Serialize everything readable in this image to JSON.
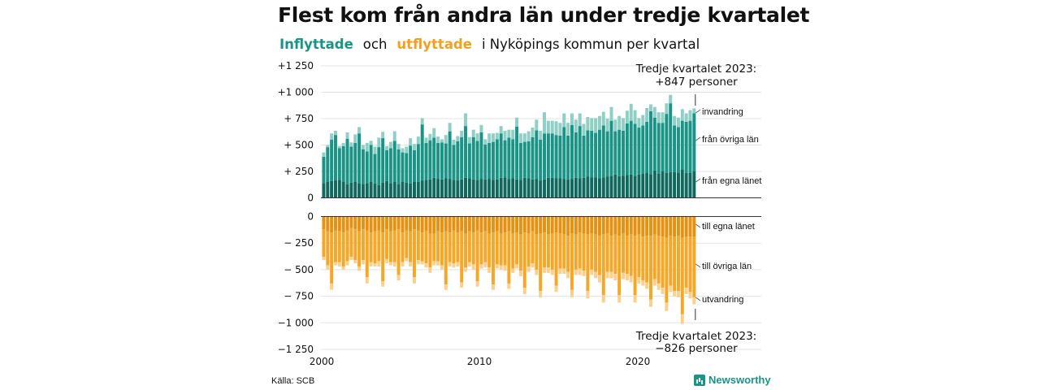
{
  "title": "Flest kom från andra län under tredje kvartalet",
  "subtitle": {
    "inflow": "Inflyttade",
    "and": "och",
    "outflow": "utflyttade",
    "rest": "i Nyköpings kommun per kvartal"
  },
  "source": "Källa: SCB",
  "brand": "Newsworthy",
  "colors": {
    "in_local": "#10695e",
    "in_other": "#1a9486",
    "in_abroad": "#8fd0c6",
    "out_local": "#e8900f",
    "out_other": "#f6a728",
    "out_abroad": "#fbd08c"
  },
  "chart_data": {
    "type": "bar",
    "stacked": true,
    "x_start": "2000 Q1",
    "x_end": "2023 Q3",
    "x_ticks": [
      "2000",
      "2010",
      "2020"
    ],
    "top_panel": {
      "y_ticks": [
        {
          "value": 1250,
          "label": "+1 250"
        },
        {
          "value": 1000,
          "label": "+1 000"
        },
        {
          "value": 750,
          "label": "+  750"
        },
        {
          "value": 500,
          "label": "+  500"
        },
        {
          "value": 250,
          "label": "+  250"
        },
        {
          "value": 0,
          "label": "0"
        }
      ],
      "series_labels": [
        "invandring",
        "från övriga län",
        "från egna länet"
      ],
      "callout": [
        "Tredje kvartalet 2023:",
        "+847 personer"
      ],
      "from_own_county": [
        140,
        150,
        160,
        165,
        170,
        150,
        130,
        145,
        150,
        140,
        130,
        140,
        150,
        135,
        120,
        145,
        160,
        140,
        150,
        130,
        150,
        145,
        135,
        150,
        150,
        165,
        170,
        175,
        190,
        180,
        175,
        185,
        180,
        170,
        165,
        175,
        190,
        185,
        175,
        170,
        180,
        175,
        180,
        170,
        175,
        190,
        195,
        180,
        185,
        175,
        170,
        190,
        185,
        175,
        180,
        165,
        175,
        190,
        190,
        185,
        185,
        180,
        175,
        180,
        190,
        185,
        190,
        200,
        195,
        195,
        185,
        195,
        200,
        210,
        220,
        205,
        210,
        215,
        220,
        210,
        220,
        230,
        240,
        225,
        260,
        230,
        250,
        235,
        245,
        245,
        240,
        270,
        235,
        240,
        250
      ],
      "from_other_counties": [
        250,
        330,
        390,
        430,
        300,
        340,
        430,
        340,
        370,
        470,
        330,
        300,
        350,
        280,
        360,
        420,
        290,
        330,
        390,
        330,
        280,
        280,
        360,
        300,
        360,
        530,
        350,
        370,
        380,
        340,
        350,
        330,
        450,
        330,
        370,
        400,
        490,
        330,
        400,
        370,
        440,
        330,
        340,
        360,
        380,
        420,
        350,
        390,
        370,
        500,
        350,
        340,
        350,
        400,
        460,
        385,
        435,
        420,
        420,
        410,
        405,
        490,
        415,
        510,
        430,
        495,
        400,
        440,
        440,
        420,
        460,
        490,
        430,
        520,
        410,
        440,
        425,
        490,
        510,
        490,
        445,
        455,
        480,
        595,
        500,
        480,
        460,
        560,
        650,
        440,
        430,
        460,
        485,
        490,
        550
      ],
      "immigration": [
        40,
        20,
        60,
        40,
        20,
        30,
        60,
        40,
        80,
        60,
        40,
        80,
        40,
        70,
        90,
        60,
        40,
        60,
        90,
        50,
        40,
        60,
        70,
        60,
        70,
        60,
        50,
        60,
        90,
        60,
        30,
        80,
        80,
        50,
        50,
        60,
        120,
        60,
        70,
        70,
        70,
        50,
        90,
        80,
        60,
        70,
        90,
        75,
        90,
        85,
        90,
        80,
        95,
        90,
        100,
        85,
        200,
        120,
        120,
        130,
        120,
        130,
        120,
        110,
        120,
        120,
        110,
        125,
        120,
        140,
        130,
        130,
        120,
        130,
        110,
        130,
        120,
        120,
        160,
        130,
        90,
        100,
        130,
        65,
        100,
        100,
        100,
        100,
        80,
        90,
        90,
        110,
        80,
        100,
        47
      ]
    },
    "bottom_panel": {
      "y_ticks": [
        {
          "value": 0,
          "label": "0"
        },
        {
          "value": -250,
          "label": "−  250"
        },
        {
          "value": -500,
          "label": "−  500"
        },
        {
          "value": -750,
          "label": "−  750"
        },
        {
          "value": -1000,
          "label": "−1 000"
        },
        {
          "value": -1250,
          "label": "−1 250"
        }
      ],
      "series_labels": [
        "till egna länet",
        "till övriga län",
        "utvandring"
      ],
      "callout": [
        "Tredje kvartalet 2023:",
        "−826 personer"
      ],
      "to_own_county": [
        120,
        140,
        150,
        130,
        140,
        150,
        130,
        110,
        120,
        140,
        120,
        130,
        150,
        140,
        130,
        150,
        120,
        140,
        130,
        120,
        150,
        130,
        140,
        120,
        130,
        150,
        140,
        160,
        160,
        140,
        150,
        140,
        150,
        130,
        150,
        140,
        160,
        140,
        150,
        130,
        150,
        140,
        160,
        150,
        140,
        160,
        150,
        140,
        160,
        150,
        170,
        150,
        160,
        140,
        170,
        160,
        150,
        170,
        160,
        150,
        160,
        170,
        180,
        160,
        170,
        150,
        160,
        170,
        160,
        170,
        180,
        170,
        160,
        180,
        170,
        180,
        160,
        180,
        170,
        180,
        170,
        190,
        180,
        180,
        170,
        180,
        190,
        200,
        180,
        190,
        180,
        200,
        190,
        190,
        190
      ],
      "to_other_counties": [
        260,
        320,
        480,
        300,
        290,
        320,
        290,
        270,
        290,
        330,
        290,
        440,
        280,
        300,
        290,
        460,
        280,
        290,
        300,
        430,
        280,
        260,
        290,
        450,
        280,
        270,
        300,
        320,
        260,
        280,
        310,
        500,
        280,
        310,
        280,
        480,
        320,
        290,
        300,
        480,
        300,
        290,
        320,
        490,
        310,
        300,
        310,
        490,
        330,
        300,
        340,
        520,
        310,
        300,
        330,
        540,
        330,
        310,
        340,
        500,
        330,
        320,
        340,
        530,
        330,
        340,
        350,
        530,
        340,
        350,
        370,
        570,
        360,
        340,
        370,
        560,
        370,
        360,
        390,
        560,
        400,
        410,
        440,
        600,
        420,
        450,
        480,
        610,
        470,
        510,
        520,
        720,
        480,
        520,
        570
      ],
      "emigration": [
        30,
        40,
        60,
        30,
        40,
        30,
        40,
        30,
        30,
        40,
        40,
        60,
        40,
        30,
        50,
        50,
        40,
        30,
        40,
        50,
        40,
        30,
        40,
        60,
        40,
        30,
        40,
        50,
        40,
        40,
        40,
        50,
        40,
        40,
        40,
        50,
        40,
        40,
        50,
        50,
        40,
        50,
        50,
        50,
        40,
        40,
        50,
        50,
        40,
        40,
        50,
        60,
        50,
        40,
        50,
        60,
        50,
        50,
        50,
        60,
        50,
        50,
        60,
        70,
        50,
        60,
        50,
        70,
        50,
        60,
        70,
        70,
        60,
        60,
        60,
        70,
        60,
        60,
        60,
        70,
        60,
        50,
        60,
        70,
        60,
        60,
        60,
        80,
        60,
        50,
        60,
        90,
        60,
        60,
        66
      ]
    }
  }
}
